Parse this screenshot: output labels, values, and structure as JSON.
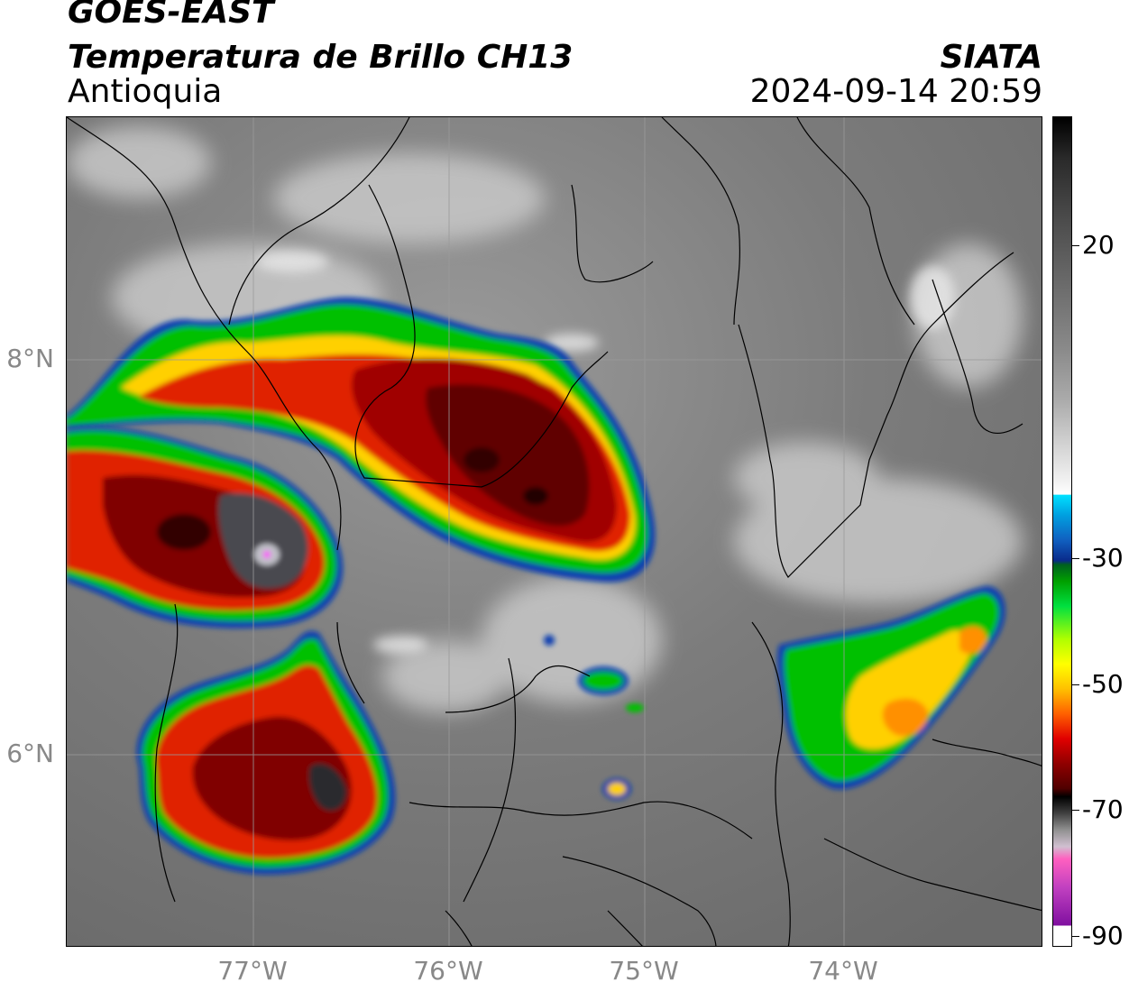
{
  "header": {
    "satellite": "GOES-EAST",
    "product": "Temperatura de Brillo CH13",
    "region": "Antioquia",
    "organization": "SIATA",
    "timestamp": "2024-09-14 20:59"
  },
  "map": {
    "latitude_labels": [
      "8°N",
      "6°N"
    ],
    "longitude_labels": [
      "77°W",
      "76°W",
      "75°W",
      "74°W"
    ],
    "background": "grey satellite infrared imagery with coloured convective cloud tops",
    "colors": {
      "warm_surface": "#7a7a7a",
      "cold_cloud_cores": "#8b0000",
      "cloud_edges": "#00c000",
      "boundaries": "#000000"
    }
  },
  "colorbar": {
    "tick_labels": [
      "20",
      "-30",
      "-50",
      "-70",
      "-90"
    ]
  }
}
